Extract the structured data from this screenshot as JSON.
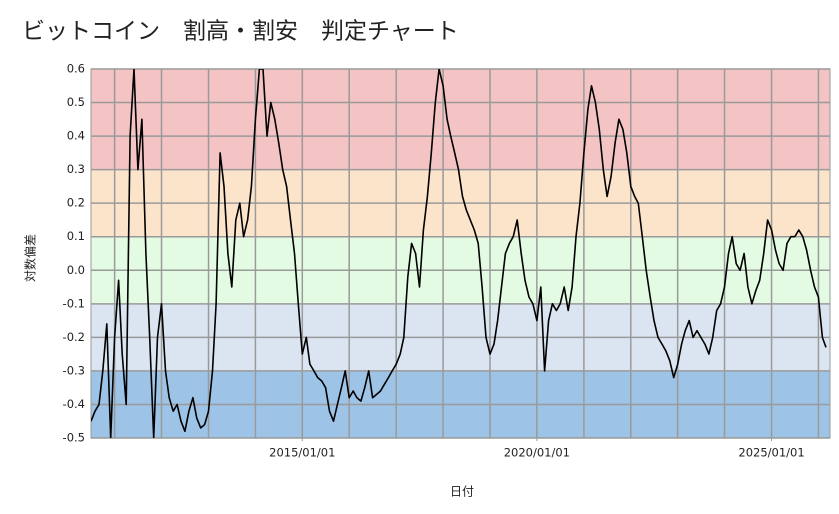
{
  "chart_data": {
    "type": "line",
    "title": "ビットコイン　割高・割安　判定チャート",
    "x_label": "日付",
    "y_label": "対数偏差",
    "color": "#000000",
    "grid": true,
    "bands": [
      {
        "from": 0.3,
        "to": 0.6,
        "color": "#f4c3c3"
      },
      {
        "from": 0.1,
        "to": 0.3,
        "color": "#fbe4c9"
      },
      {
        "from": -0.1,
        "to": 0.1,
        "color": "#e3fbe3"
      },
      {
        "from": -0.3,
        "to": -0.1,
        "color": "#dbe5f1"
      },
      {
        "from": -0.5,
        "to": -0.3,
        "color": "#9dc3e6"
      }
    ],
    "xlim": [
      "2010/07/01",
      "2026/04/01"
    ],
    "xticks": [
      "2015/01/01",
      "2020/01/01",
      "2025/01/01"
    ],
    "xgrid": [
      "2011/01/01",
      "2012/01/01",
      "2013/01/01",
      "2014/01/01",
      "2015/01/01",
      "2016/01/01",
      "2017/01/01",
      "2018/01/01",
      "2019/01/01",
      "2020/01/01",
      "2021/01/01",
      "2022/01/01",
      "2023/01/01",
      "2024/01/01",
      "2025/01/01",
      "2026/01/01"
    ],
    "ylim": [
      -0.5,
      0.6
    ],
    "yticks": [
      0.6,
      0.5,
      0.4,
      0.3,
      0.2,
      0.1,
      {
        "value": 0,
        "label": "0.0"
      },
      -0.1,
      -0.2,
      -0.3,
      -0.4,
      -0.5
    ],
    "x": [
      "2010/07/01",
      "2010/08/01",
      "2010/09/01",
      "2010/10/01",
      "2010/11/01",
      "2010/12/01",
      "2011/01/01",
      "2011/02/01",
      "2011/03/01",
      "2011/04/01",
      "2011/05/01",
      "2011/06/01",
      "2011/07/01",
      "2011/08/01",
      "2011/09/01",
      "2011/10/01",
      "2011/11/01",
      "2011/12/01",
      "2012/01/01",
      "2012/02/01",
      "2012/03/01",
      "2012/04/01",
      "2012/05/01",
      "2012/06/01",
      "2012/07/01",
      "2012/08/01",
      "2012/09/01",
      "2012/10/01",
      "2012/11/01",
      "2012/12/01",
      "2013/01/01",
      "2013/02/01",
      "2013/03/01",
      "2013/04/01",
      "2013/05/01",
      "2013/06/01",
      "2013/07/01",
      "2013/08/01",
      "2013/09/01",
      "2013/10/01",
      "2013/11/01",
      "2013/12/01",
      "2014/01/01",
      "2014/02/01",
      "2014/03/01",
      "2014/04/01",
      "2014/05/01",
      "2014/06/01",
      "2014/07/01",
      "2014/08/01",
      "2014/09/01",
      "2014/10/01",
      "2014/11/01",
      "2014/12/01",
      "2015/01/01",
      "2015/02/01",
      "2015/03/01",
      "2015/04/01",
      "2015/05/01",
      "2015/06/01",
      "2015/07/01",
      "2015/08/01",
      "2015/09/01",
      "2015/10/01",
      "2015/11/01",
      "2015/12/01",
      "2016/01/01",
      "2016/02/01",
      "2016/03/01",
      "2016/04/01",
      "2016/05/01",
      "2016/06/01",
      "2016/07/01",
      "2016/08/01",
      "2016/09/01",
      "2016/10/01",
      "2016/11/01",
      "2016/12/01",
      "2017/01/01",
      "2017/02/01",
      "2017/03/01",
      "2017/04/01",
      "2017/05/01",
      "2017/06/01",
      "2017/07/01",
      "2017/08/01",
      "2017/09/01",
      "2017/10/01",
      "2017/11/01",
      "2017/12/01",
      "2018/01/01",
      "2018/02/01",
      "2018/03/01",
      "2018/04/01",
      "2018/05/01",
      "2018/06/01",
      "2018/07/01",
      "2018/08/01",
      "2018/09/01",
      "2018/10/01",
      "2018/11/01",
      "2018/12/01",
      "2019/01/01",
      "2019/02/01",
      "2019/03/01",
      "2019/04/01",
      "2019/05/01",
      "2019/06/01",
      "2019/07/01",
      "2019/08/01",
      "2019/09/01",
      "2019/10/01",
      "2019/11/01",
      "2019/12/01",
      "2020/01/01",
      "2020/02/01",
      "2020/03/01",
      "2020/04/01",
      "2020/05/01",
      "2020/06/01",
      "2020/07/01",
      "2020/08/01",
      "2020/09/01",
      "2020/10/01",
      "2020/11/01",
      "2020/12/01",
      "2021/01/01",
      "2021/02/01",
      "2021/03/01",
      "2021/04/01",
      "2021/05/01",
      "2021/06/01",
      "2021/07/01",
      "2021/08/01",
      "2021/09/01",
      "2021/10/01",
      "2021/11/01",
      "2021/12/01",
      "2022/01/01",
      "2022/02/01",
      "2022/03/01",
      "2022/04/01",
      "2022/05/01",
      "2022/06/01",
      "2022/07/01",
      "2022/08/01",
      "2022/09/01",
      "2022/10/01",
      "2022/11/01",
      "2022/12/01",
      "2023/01/01",
      "2023/02/01",
      "2023/03/01",
      "2023/04/01",
      "2023/05/01",
      "2023/06/01",
      "2023/07/01",
      "2023/08/01",
      "2023/09/01",
      "2023/10/01",
      "2023/11/01",
      "2023/12/01",
      "2024/01/01",
      "2024/02/01",
      "2024/03/01",
      "2024/04/01",
      "2024/05/01",
      "2024/06/01",
      "2024/07/01",
      "2024/08/01",
      "2024/09/01",
      "2024/10/01",
      "2024/11/01",
      "2024/12/01",
      "2025/01/01",
      "2025/02/01",
      "2025/03/01",
      "2025/04/01",
      "2025/05/01",
      "2025/06/01",
      "2025/07/01",
      "2025/08/01",
      "2025/09/01",
      "2025/10/01",
      "2025/11/01",
      "2025/12/01",
      "2026/01/01",
      "2026/02/01",
      "2026/03/01"
    ],
    "values": [
      -0.45,
      -0.42,
      -0.4,
      -0.3,
      -0.16,
      -0.5,
      -0.2,
      -0.03,
      -0.25,
      -0.4,
      0.4,
      0.6,
      0.3,
      0.45,
      0.05,
      -0.2,
      -0.5,
      -0.2,
      -0.1,
      -0.3,
      -0.38,
      -0.42,
      -0.4,
      -0.45,
      -0.48,
      -0.42,
      -0.38,
      -0.44,
      -0.47,
      -0.46,
      -0.42,
      -0.3,
      -0.1,
      0.35,
      0.25,
      0.05,
      -0.05,
      0.15,
      0.2,
      0.1,
      0.15,
      0.25,
      0.45,
      0.6,
      0.6,
      0.4,
      0.5,
      0.45,
      0.38,
      0.3,
      0.25,
      0.15,
      0.05,
      -0.1,
      -0.25,
      -0.2,
      -0.28,
      -0.3,
      -0.32,
      -0.33,
      -0.35,
      -0.42,
      -0.45,
      -0.4,
      -0.35,
      -0.3,
      -0.38,
      -0.36,
      -0.38,
      -0.39,
      -0.35,
      -0.3,
      -0.38,
      -0.37,
      -0.36,
      -0.34,
      -0.32,
      -0.3,
      -0.28,
      -0.25,
      -0.2,
      -0.02,
      0.08,
      0.05,
      -0.05,
      0.12,
      0.22,
      0.35,
      0.5,
      0.6,
      0.55,
      0.45,
      0.4,
      0.35,
      0.3,
      0.22,
      0.18,
      0.15,
      0.12,
      0.08,
      -0.05,
      -0.2,
      -0.25,
      -0.22,
      -0.15,
      -0.05,
      0.05,
      0.08,
      0.1,
      0.15,
      0.05,
      -0.03,
      -0.08,
      -0.1,
      -0.15,
      -0.05,
      -0.3,
      -0.15,
      -0.1,
      -0.12,
      -0.1,
      -0.05,
      -0.12,
      -0.05,
      0.1,
      0.2,
      0.35,
      0.48,
      0.55,
      0.5,
      0.42,
      0.3,
      0.22,
      0.28,
      0.38,
      0.45,
      0.42,
      0.35,
      0.25,
      0.22,
      0.2,
      0.1,
      0.0,
      -0.08,
      -0.15,
      -0.2,
      -0.22,
      -0.24,
      -0.27,
      -0.32,
      -0.28,
      -0.22,
      -0.18,
      -0.15,
      -0.2,
      -0.18,
      -0.2,
      -0.22,
      -0.25,
      -0.2,
      -0.12,
      -0.1,
      -0.05,
      0.05,
      0.1,
      0.02,
      0.0,
      0.05,
      -0.05,
      -0.1,
      -0.06,
      -0.03,
      0.05,
      0.15,
      0.12,
      0.06,
      0.02,
      0.0,
      0.08,
      0.1,
      0.1,
      0.12,
      0.1,
      0.06,
      0.0,
      -0.05,
      -0.08,
      -0.2,
      -0.23
    ]
  }
}
